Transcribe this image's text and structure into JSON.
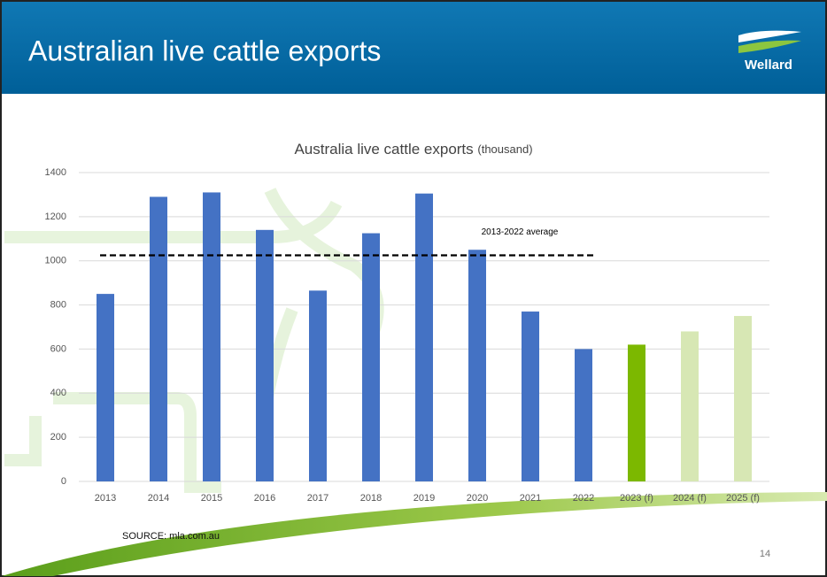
{
  "slide": {
    "title": "Australian live cattle exports",
    "logo": "Wellard",
    "source": "SOURCE: mla.com.au",
    "page": "14"
  },
  "chart_data": {
    "type": "bar",
    "title": "Australia live cattle exports",
    "subtitle": "(thousand)",
    "categories": [
      "2013",
      "2014",
      "2015",
      "2016",
      "2017",
      "2018",
      "2019",
      "2020",
      "2021",
      "2022",
      "2023 (f)",
      "2024 (f)",
      "2025 (f)"
    ],
    "values": [
      850,
      1290,
      1310,
      1140,
      865,
      1125,
      1305,
      1050,
      770,
      600,
      620,
      680,
      750
    ],
    "colors": [
      "#4472c4",
      "#4472c4",
      "#4472c4",
      "#4472c4",
      "#4472c4",
      "#4472c4",
      "#4472c4",
      "#4472c4",
      "#4472c4",
      "#4472c4",
      "#7cb800",
      "#d7e7b4",
      "#d7e7b4"
    ],
    "ylim": [
      0,
      1400
    ],
    "yticks": [
      0,
      200,
      400,
      600,
      800,
      1000,
      1200,
      1400
    ],
    "grid": true,
    "reference_line": {
      "value": 1025,
      "label": "2013-2022 average",
      "color": "#000000"
    }
  }
}
